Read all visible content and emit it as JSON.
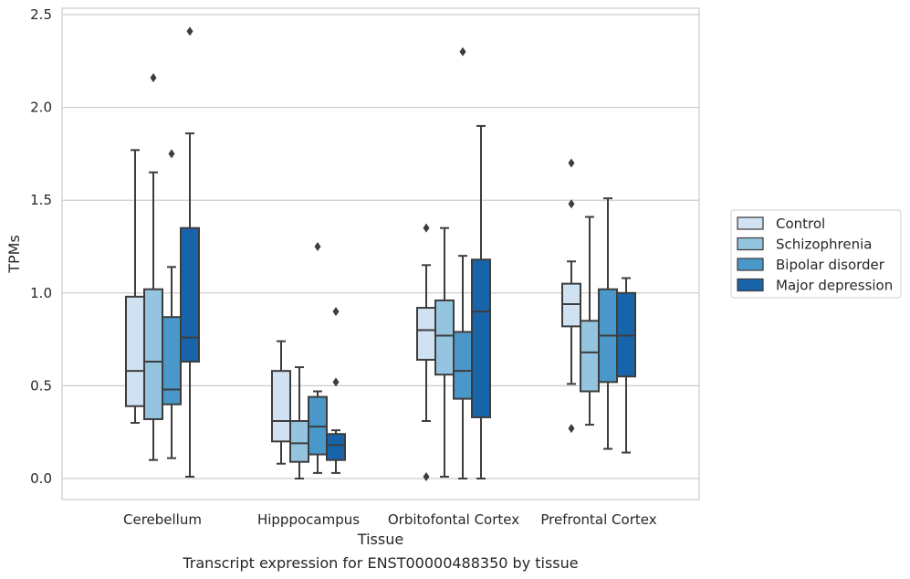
{
  "chart_data": {
    "type": "boxplot",
    "xlabel": "Tissue",
    "ylabel": "TPMs",
    "caption": "Transcript expression for ENST00000488350 by tissue",
    "ylim": [
      -0.12,
      2.55
    ],
    "yticks": [
      0.0,
      0.5,
      1.0,
      1.5,
      2.0,
      2.5
    ],
    "ytick_labels": [
      "0.0",
      "0.5",
      "1.0",
      "1.5",
      "2.0",
      "2.5"
    ],
    "grid": "horizontal",
    "legend_position": "right",
    "categories": [
      "Cerebellum",
      "Hipppocampus",
      "Orbitofontal Cortex",
      "Prefrontal Cortex"
    ],
    "series": [
      {
        "name": "Control",
        "color": "#d0e1f2",
        "boxes": [
          {
            "whisker_low": 0.3,
            "q1": 0.39,
            "median": 0.58,
            "q3": 0.98,
            "whisker_high": 1.77,
            "outliers": []
          },
          {
            "whisker_low": 0.08,
            "q1": 0.2,
            "median": 0.31,
            "q3": 0.58,
            "whisker_high": 0.74,
            "outliers": []
          },
          {
            "whisker_low": 0.31,
            "q1": 0.64,
            "median": 0.8,
            "q3": 0.92,
            "whisker_high": 1.15,
            "outliers": [
              1.35,
              0.01
            ]
          },
          {
            "whisker_low": 0.51,
            "q1": 0.82,
            "median": 0.94,
            "q3": 1.05,
            "whisker_high": 1.17,
            "outliers": [
              1.7,
              1.48,
              0.27
            ]
          }
        ]
      },
      {
        "name": "Schizophrenia",
        "color": "#94c4df",
        "boxes": [
          {
            "whisker_low": 0.1,
            "q1": 0.32,
            "median": 0.63,
            "q3": 1.02,
            "whisker_high": 1.65,
            "outliers": [
              2.16
            ]
          },
          {
            "whisker_low": 0.0,
            "q1": 0.09,
            "median": 0.19,
            "q3": 0.31,
            "whisker_high": 0.6,
            "outliers": []
          },
          {
            "whisker_low": 0.01,
            "q1": 0.56,
            "median": 0.77,
            "q3": 0.96,
            "whisker_high": 1.35,
            "outliers": []
          },
          {
            "whisker_low": 0.29,
            "q1": 0.47,
            "median": 0.68,
            "q3": 0.85,
            "whisker_high": 1.41,
            "outliers": []
          }
        ]
      },
      {
        "name": "Bipolar disorder",
        "color": "#4a98c9",
        "boxes": [
          {
            "whisker_low": 0.11,
            "q1": 0.4,
            "median": 0.48,
            "q3": 0.87,
            "whisker_high": 1.14,
            "outliers": [
              1.75
            ]
          },
          {
            "whisker_low": 0.03,
            "q1": 0.13,
            "median": 0.28,
            "q3": 0.44,
            "whisker_high": 0.47,
            "outliers": [
              1.25
            ]
          },
          {
            "whisker_low": 0.0,
            "q1": 0.43,
            "median": 0.58,
            "q3": 0.79,
            "whisker_high": 1.2,
            "outliers": [
              2.3
            ]
          },
          {
            "whisker_low": 0.16,
            "q1": 0.52,
            "median": 0.77,
            "q3": 1.02,
            "whisker_high": 1.51,
            "outliers": []
          }
        ]
      },
      {
        "name": "Major depression",
        "color": "#1764ab",
        "boxes": [
          {
            "whisker_low": 0.01,
            "q1": 0.63,
            "median": 0.76,
            "q3": 1.35,
            "whisker_high": 1.86,
            "outliers": [
              2.41
            ]
          },
          {
            "whisker_low": 0.03,
            "q1": 0.1,
            "median": 0.18,
            "q3": 0.24,
            "whisker_high": 0.26,
            "outliers": [
              0.9,
              0.52
            ]
          },
          {
            "whisker_low": 0.0,
            "q1": 0.33,
            "median": 0.9,
            "q3": 1.18,
            "whisker_high": 1.9,
            "outliers": []
          },
          {
            "whisker_low": 0.14,
            "q1": 0.55,
            "median": 0.77,
            "q3": 1.0,
            "whisker_high": 1.08,
            "outliers": []
          }
        ]
      }
    ]
  }
}
